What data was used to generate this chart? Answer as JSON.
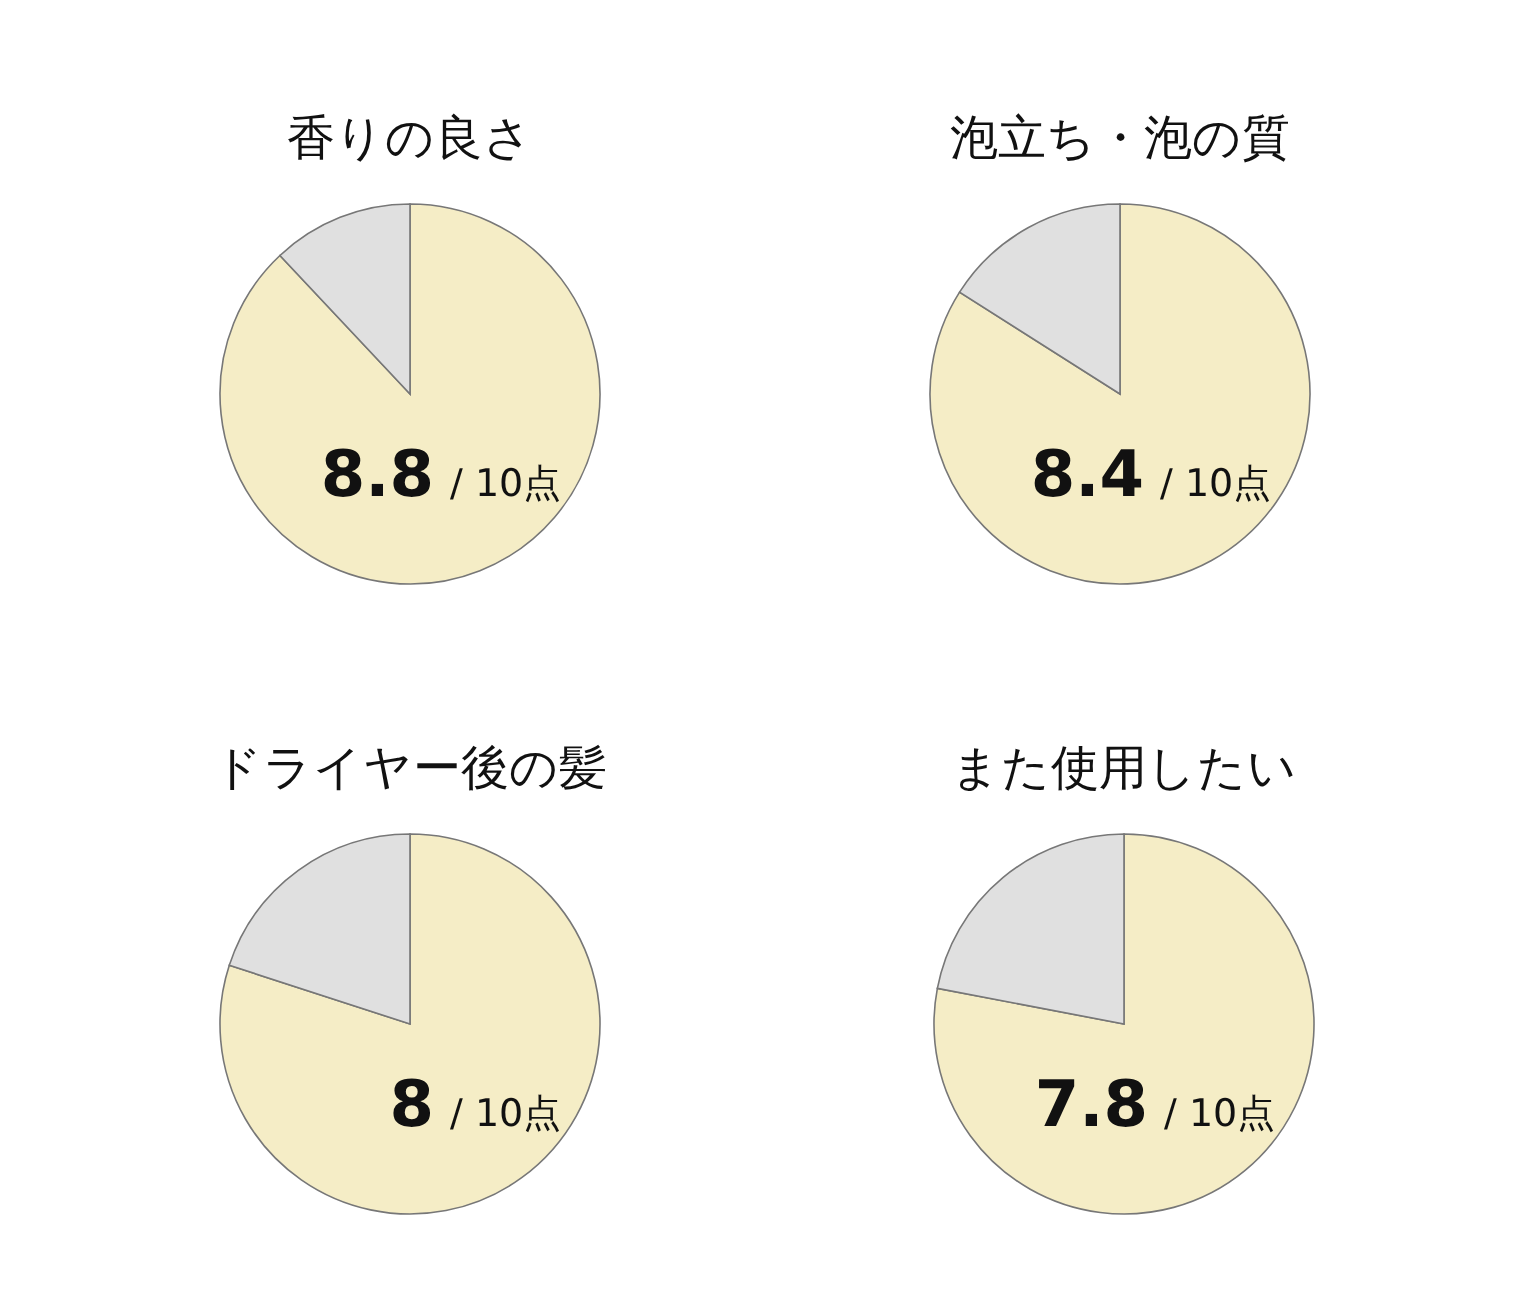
{
  "chart_data": [
    {
      "type": "pie",
      "title": "香りの良さ",
      "categories": [
        null,
        null
      ],
      "values": [
        8.8,
        1.2
      ],
      "colors": [
        "#f5edc6",
        "#e0e0e0"
      ],
      "value_labels": [
        "8.8",
        null
      ],
      "annotations": [
        "/ 10点"
      ]
    },
    {
      "type": "pie",
      "title": "泡立ち・泡の質",
      "categories": [
        null,
        null
      ],
      "values": [
        8.4,
        1.6
      ],
      "colors": [
        "#f5edc6",
        "#e0e0e0"
      ],
      "value_labels": [
        "8.4",
        null
      ],
      "annotations": [
        "/ 10点"
      ]
    },
    {
      "type": "pie",
      "title": "ドライヤー後の髪",
      "categories": [
        null,
        null
      ],
      "values": [
        8,
        2
      ],
      "colors": [
        "#f5edc6",
        "#e0e0e0"
      ],
      "value_labels": [
        "8",
        null
      ],
      "annotations": [
        "/ 10点"
      ]
    },
    {
      "type": "pie",
      "title": "また使用したい",
      "categories": [
        null,
        null
      ],
      "values": [
        7.8,
        2.2
      ],
      "colors": [
        "#f5edc6",
        "#e0e0e0"
      ],
      "value_labels": [
        "7.8",
        null
      ],
      "annotations": [
        "/ 10点"
      ]
    }
  ]
}
